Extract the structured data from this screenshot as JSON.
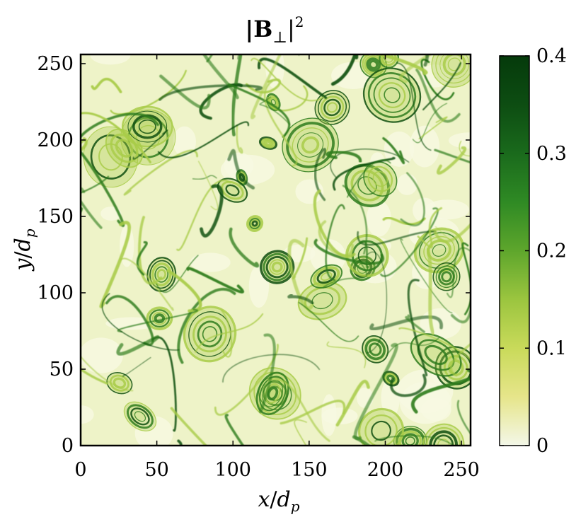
{
  "chart_data": {
    "type": "heatmap",
    "title_main": "|B",
    "title_sub": "⊥",
    "title_tail": "|",
    "title_sup": "2",
    "xlabel": {
      "var": "x",
      "sep": "/",
      "unit": "d",
      "unit_sub": "p"
    },
    "ylabel": {
      "var": "y",
      "sep": "/",
      "unit": "d",
      "unit_sub": "p"
    },
    "xlim": [
      0,
      256
    ],
    "ylim": [
      0,
      256
    ],
    "x_ticks": [
      0,
      50,
      100,
      150,
      200,
      250
    ],
    "y_ticks": [
      0,
      50,
      100,
      150,
      200,
      250
    ],
    "x_tick_labels": [
      "0",
      "50",
      "100",
      "150",
      "200",
      "250"
    ],
    "y_tick_labels": [
      "0",
      "50",
      "100",
      "150",
      "200",
      "250"
    ],
    "colorbar": {
      "range": [
        0,
        0.4
      ],
      "ticks": [
        0,
        0.1,
        0.2,
        0.3,
        0.4
      ],
      "tick_labels": [
        "0",
        "0.1",
        "0.2",
        "0.3",
        "0.4"
      ],
      "colors": [
        "#f3f7e8",
        "#e6e58a",
        "#c9da5a",
        "#9bc53f",
        "#5ea62c",
        "#2f8a24",
        "#1a6a1c",
        "#0d4d12",
        "#053a0b"
      ]
    },
    "field_colors": {
      "background": "#eef3c8",
      "light": "#f7f9e2",
      "mid": "#a9cc4a",
      "dark": "#2f7d1e",
      "darkest": "#0f4f10"
    },
    "grid": false,
    "legend": "none"
  }
}
